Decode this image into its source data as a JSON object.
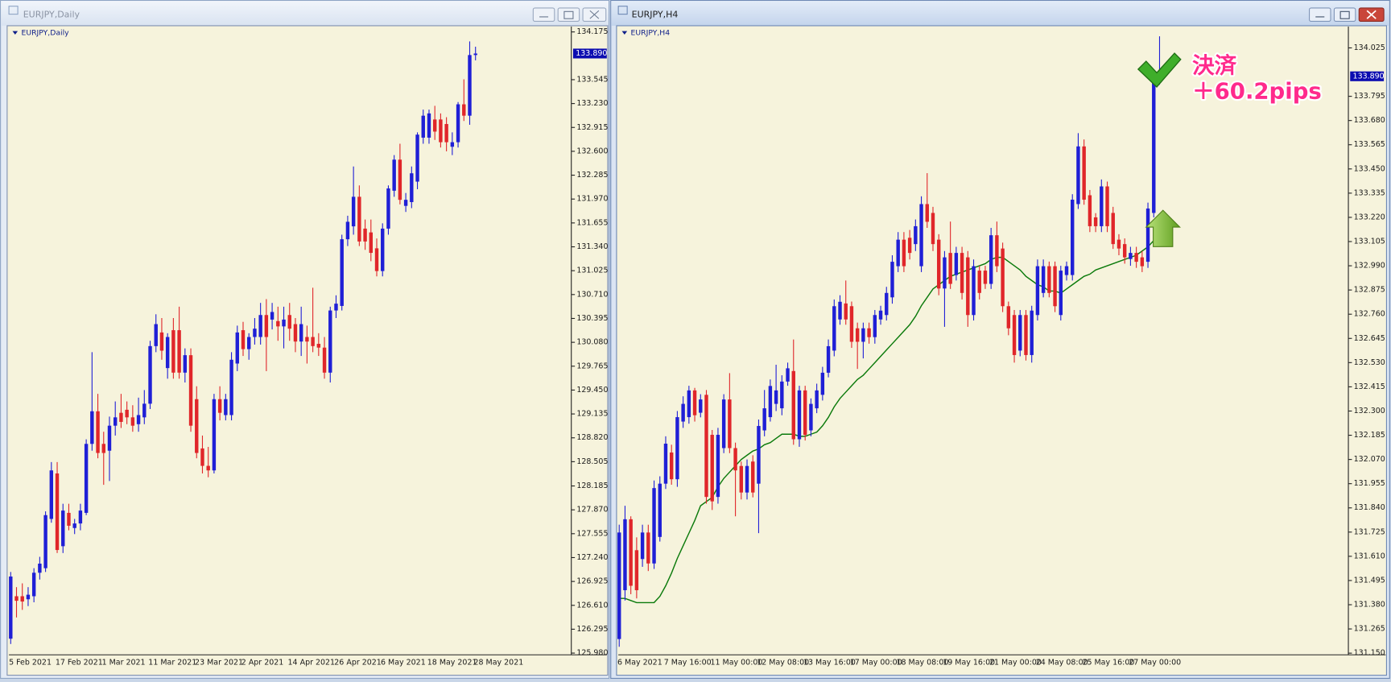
{
  "windows": [
    {
      "title": "EURJPY,Daily"
    },
    {
      "title": "EURJPY,H4"
    }
  ],
  "chart_data": [
    {
      "type": "candlestick",
      "title": "EURJPY,Daily",
      "categories": [
        "5 Feb 2021",
        null,
        null,
        null,
        null,
        null,
        null,
        null,
        "17 Feb 2021",
        null,
        null,
        null,
        null,
        null,
        null,
        null,
        "1 Mar 2021",
        null,
        null,
        null,
        null,
        null,
        null,
        null,
        "11 Mar 2021",
        null,
        null,
        null,
        null,
        null,
        null,
        null,
        "23 Mar 2021",
        null,
        null,
        null,
        null,
        null,
        null,
        null,
        "2 Apr 2021",
        null,
        null,
        null,
        null,
        null,
        null,
        null,
        "14 Apr 2021",
        null,
        null,
        null,
        null,
        null,
        null,
        null,
        "26 Apr 2021",
        null,
        null,
        null,
        null,
        null,
        null,
        null,
        "6 May 2021",
        null,
        null,
        null,
        null,
        null,
        null,
        null,
        "18 May 2021",
        null,
        null,
        null,
        null,
        null,
        null,
        null,
        "28 May 2021"
      ],
      "open": [
        126.17,
        126.73,
        126.73,
        126.69,
        126.73,
        127.04,
        127.1,
        127.75,
        128.35,
        127.39,
        127.83,
        127.63,
        127.69,
        127.83,
        128.74,
        129.17,
        128.74,
        128.65,
        128.98,
        129.15,
        129.19,
        129.09,
        129.0,
        129.09,
        129.27,
        130.03,
        130.21,
        129.74,
        130.24,
        130.24,
        129.68,
        129.91,
        129.33,
        128.68,
        128.45,
        128.39,
        129.33,
        129.12,
        129.12,
        129.8,
        130.24,
        129.99,
        130.15,
        130.15,
        130.44,
        130.38,
        130.36,
        130.29,
        130.44,
        130.32,
        130.09,
        130.15,
        130.15,
        130.06,
        130.01,
        129.68,
        130.5,
        130.56,
        131.44,
        131.61,
        132.0,
        131.58,
        131.53,
        131.32,
        131.02,
        131.58,
        132.08,
        132.49,
        131.88,
        131.93,
        132.2,
        132.78,
        132.78,
        133.02,
        133.02,
        132.96,
        132.66,
        132.72,
        133.22,
        133.07,
        133.87
      ],
      "high": [
        127.05,
        126.85,
        126.9,
        126.85,
        127.1,
        127.25,
        127.85,
        128.5,
        128.5,
        127.95,
        127.95,
        127.75,
        127.95,
        128.8,
        129.95,
        129.4,
        128.9,
        129.1,
        129.3,
        129.4,
        129.3,
        129.25,
        129.35,
        129.45,
        130.1,
        130.45,
        130.4,
        130.2,
        130.4,
        130.55,
        130.0,
        130.0,
        129.5,
        128.85,
        128.7,
        129.4,
        129.5,
        129.4,
        129.95,
        130.3,
        130.35,
        130.2,
        130.4,
        130.6,
        130.65,
        130.6,
        130.55,
        130.55,
        130.6,
        130.4,
        130.55,
        130.3,
        130.8,
        130.2,
        130.15,
        130.55,
        130.7,
        131.5,
        131.75,
        132.4,
        132.15,
        131.7,
        131.7,
        131.45,
        131.65,
        132.15,
        132.55,
        132.7,
        132.05,
        132.4,
        132.85,
        133.15,
        133.15,
        133.2,
        133.1,
        133.05,
        132.85,
        133.25,
        133.55,
        134.05,
        133.98
      ],
      "low": [
        126.1,
        126.45,
        126.55,
        126.6,
        126.65,
        126.95,
        127.05,
        127.7,
        127.3,
        127.3,
        127.6,
        127.55,
        127.6,
        127.8,
        128.65,
        128.55,
        128.2,
        128.25,
        128.85,
        128.95,
        129.0,
        128.9,
        128.9,
        129.0,
        129.2,
        129.95,
        129.85,
        129.6,
        129.6,
        129.6,
        129.55,
        128.9,
        128.55,
        128.35,
        128.3,
        128.35,
        129.05,
        129.05,
        129.05,
        129.7,
        129.9,
        129.85,
        130.05,
        130.05,
        129.7,
        130.25,
        130.1,
        130.0,
        130.1,
        129.95,
        129.9,
        129.8,
        129.95,
        129.9,
        129.6,
        129.55,
        130.4,
        130.5,
        131.35,
        131.5,
        131.35,
        131.3,
        131.15,
        130.95,
        130.95,
        131.5,
        132.0,
        131.9,
        131.8,
        131.85,
        132.1,
        132.7,
        132.7,
        132.75,
        132.65,
        132.6,
        132.55,
        132.65,
        133.0,
        132.95,
        133.8
      ],
      "close": [
        126.99,
        126.67,
        126.66,
        126.75,
        127.04,
        127.16,
        127.8,
        128.39,
        127.34,
        127.86,
        127.66,
        127.69,
        127.86,
        128.74,
        129.17,
        128.62,
        128.62,
        128.98,
        129.09,
        129.03,
        129.09,
        128.98,
        129.12,
        129.27,
        130.03,
        130.32,
        129.97,
        130.15,
        129.68,
        129.68,
        129.91,
        128.98,
        128.62,
        128.45,
        128.39,
        129.33,
        129.15,
        129.33,
        129.85,
        130.21,
        129.99,
        130.15,
        130.26,
        130.44,
        130.15,
        130.48,
        130.29,
        130.38,
        130.26,
        130.09,
        130.32,
        130.09,
        130.03,
        130.01,
        129.68,
        130.5,
        130.59,
        131.44,
        131.67,
        132.0,
        131.41,
        131.41,
        131.26,
        131.02,
        131.58,
        132.11,
        132.49,
        131.96,
        131.96,
        132.31,
        132.82,
        133.07,
        133.1,
        132.86,
        132.72,
        132.72,
        132.72,
        133.22,
        133.07,
        133.87,
        133.89
      ],
      "up_color": "#1f1fd6",
      "down_color": "#e0262a",
      "ylim": [
        125.957,
        134.245
      ],
      "yticks": [
        134.175,
        133.545,
        {
          "value": 133.23,
          "label": "133.230"
        },
        132.915,
        {
          "value": 132.6,
          "label": "132.600"
        },
        132.285,
        {
          "value": 131.97,
          "label": "131.970"
        },
        131.655,
        {
          "value": 131.34,
          "label": "131.340"
        },
        131.025,
        {
          "value": 130.71,
          "label": "130.710"
        },
        130.395,
        {
          "value": 130.08,
          "label": "130.080"
        },
        129.765,
        {
          "value": 129.45,
          "label": "129.450"
        },
        129.135,
        {
          "value": 128.82,
          "label": "128.820"
        },
        128.505,
        128.185,
        {
          "value": 127.87,
          "label": "127.870"
        },
        127.555,
        {
          "value": 127.24,
          "label": "127.240"
        },
        126.925,
        {
          "value": 126.61,
          "label": "126.610"
        },
        126.295,
        {
          "value": 125.98,
          "label": "125.980"
        }
      ],
      "last_price": {
        "value": 133.89,
        "label": "133.890"
      },
      "last_price_color": "#0c0cb0"
    },
    {
      "type": "candlestick",
      "title": "EURJPY,H4",
      "categories": [
        "6 May 2021",
        null,
        null,
        null,
        null,
        null,
        null,
        null,
        "7 May 16:00",
        null,
        null,
        null,
        null,
        null,
        null,
        null,
        "11 May 00:00",
        null,
        null,
        null,
        null,
        null,
        null,
        null,
        "12 May 08:00",
        null,
        null,
        null,
        null,
        null,
        null,
        null,
        "13 May 16:00",
        null,
        null,
        null,
        null,
        null,
        null,
        null,
        "17 May 00:00",
        null,
        null,
        null,
        null,
        null,
        null,
        null,
        "18 May 08:00",
        null,
        null,
        null,
        null,
        null,
        null,
        null,
        "19 May 16:00",
        null,
        null,
        null,
        null,
        null,
        null,
        null,
        "21 May 00:00",
        null,
        null,
        null,
        null,
        null,
        null,
        null,
        "24 May 08:00",
        null,
        null,
        null,
        null,
        null,
        null,
        null,
        "25 May 16:00",
        null,
        null,
        null,
        null,
        null,
        null,
        null,
        "27 May 00:00",
        null,
        null,
        null,
        null,
        null
      ],
      "open": [
        131.217,
        131.449,
        131.786,
        131.639,
        131.597,
        131.723,
        131.576,
        131.702,
        131.955,
        132.103,
        131.976,
        132.25,
        132.271,
        132.398,
        132.292,
        132.377,
        132.187,
        131.892,
        132.124,
        132.355,
        132.124,
        132.039,
        131.913,
        132.06,
        131.955,
        132.208,
        132.271,
        132.334,
        132.313,
        132.44,
        132.49,
        132.166,
        132.398,
        132.208,
        132.313,
        132.377,
        132.482,
        132.587,
        132.735,
        132.811,
        132.798,
        132.693,
        132.629,
        132.693,
        132.651,
        132.735,
        132.756,
        132.84,
        132.988,
        133.114,
        133.123,
        133.093,
        132.988,
        133.283,
        133.241,
        133.114,
        132.882,
        133.051,
        132.946,
        133.051,
        133.03,
        132.756,
        132.967,
        132.967,
        132.904,
        133.135,
        133.072,
        132.798,
        132.756,
        132.587,
        132.756,
        132.566,
        132.756,
        132.861,
        132.988,
        132.988,
        132.756,
        132.946,
        132.946,
        133.283,
        133.557,
        133.325,
        133.22,
        133.178,
        133.367,
        133.241,
        133.114,
        133.093,
        133.022,
        133.051,
        133.03,
        133.009,
        133.241,
        133.873
      ],
      "high": [
        131.76,
        131.85,
        131.8,
        131.7,
        131.76,
        131.76,
        131.97,
        131.99,
        132.18,
        132.14,
        132.3,
        132.37,
        132.42,
        132.41,
        132.38,
        132.4,
        132.21,
        132.22,
        132.38,
        132.48,
        132.15,
        132.06,
        132.07,
        132.09,
        132.26,
        132.4,
        132.45,
        132.52,
        132.47,
        132.53,
        132.64,
        132.42,
        132.42,
        132.36,
        132.43,
        132.51,
        132.64,
        132.83,
        132.85,
        132.92,
        132.82,
        132.72,
        132.72,
        132.72,
        132.78,
        132.8,
        132.89,
        133.04,
        133.15,
        133.15,
        133.16,
        133.21,
        133.32,
        133.43,
        133.27,
        133.14,
        133.06,
        133.2,
        133.08,
        133.08,
        133.06,
        133.02,
        132.99,
        132.99,
        133.17,
        133.2,
        133.1,
        132.82,
        132.78,
        132.78,
        132.78,
        132.8,
        133.02,
        133.02,
        133.01,
        133.01,
        132.99,
        133.01,
        133.33,
        133.62,
        133.59,
        133.35,
        133.24,
        133.4,
        133.39,
        133.27,
        133.14,
        133.12,
        133.08,
        133.08,
        133.06,
        133.29,
        133.9,
        134.08
      ],
      "low": [
        131.18,
        131.4,
        131.43,
        131.41,
        131.56,
        131.54,
        131.55,
        131.68,
        131.93,
        131.95,
        131.94,
        132.22,
        132.24,
        132.25,
        132.27,
        131.86,
        131.83,
        131.86,
        132.1,
        132.1,
        131.8,
        131.88,
        131.88,
        131.89,
        131.72,
        132.18,
        132.25,
        132.3,
        132.28,
        132.42,
        132.14,
        132.13,
        132.16,
        132.18,
        132.29,
        132.35,
        132.46,
        132.56,
        132.71,
        132.71,
        132.6,
        132.5,
        132.55,
        132.62,
        132.62,
        132.71,
        132.73,
        132.81,
        132.96,
        132.96,
        133.02,
        133.06,
        132.96,
        133.17,
        133.06,
        132.85,
        132.7,
        132.88,
        132.92,
        132.83,
        132.7,
        132.73,
        132.83,
        132.88,
        132.88,
        132.96,
        132.77,
        132.66,
        132.53,
        132.56,
        132.54,
        132.53,
        132.73,
        132.84,
        132.84,
        132.77,
        132.73,
        132.92,
        132.92,
        133.26,
        133.28,
        133.15,
        133.15,
        133.15,
        133.15,
        133.07,
        133.04,
        133.0,
        132.99,
        132.98,
        132.96,
        132.98,
        133.22,
        133.85
      ],
      "close": [
        131.723,
        131.786,
        131.47,
        131.449,
        131.723,
        131.576,
        131.934,
        131.955,
        132.145,
        131.976,
        132.271,
        132.334,
        132.398,
        132.28,
        132.355,
        131.892,
        131.871,
        132.187,
        132.355,
        132.124,
        132.018,
        131.913,
        132.039,
        131.913,
        132.229,
        132.313,
        132.419,
        132.398,
        132.44,
        132.503,
        132.166,
        132.398,
        132.187,
        132.334,
        132.398,
        132.482,
        132.608,
        132.798,
        132.819,
        132.735,
        132.629,
        132.629,
        132.693,
        132.651,
        132.756,
        132.777,
        132.861,
        133.009,
        133.114,
        132.988,
        133.051,
        133.178,
        133.283,
        133.199,
        133.093,
        132.882,
        133.03,
        132.904,
        133.051,
        132.861,
        132.756,
        132.988,
        132.861,
        132.904,
        133.135,
        132.988,
        132.798,
        132.693,
        132.566,
        132.756,
        132.566,
        132.777,
        132.988,
        132.988,
        132.861,
        132.798,
        132.967,
        132.988,
        133.304,
        133.557,
        133.304,
        133.178,
        133.178,
        133.367,
        133.178,
        133.093,
        133.072,
        133.03,
        133.051,
        133.009,
        132.988,
        133.262,
        133.873,
        133.89
      ],
      "overlay": {
        "color": "#0b7a0b",
        "values": [
          131.41,
          131.41,
          131.4,
          131.39,
          131.39,
          131.39,
          131.39,
          131.42,
          131.47,
          131.53,
          131.6,
          131.66,
          131.72,
          131.78,
          131.85,
          131.87,
          131.89,
          131.94,
          131.98,
          132.01,
          132.04,
          132.07,
          132.09,
          132.11,
          132.12,
          132.14,
          132.15,
          132.17,
          132.19,
          132.19,
          132.19,
          132.18,
          132.18,
          132.19,
          132.2,
          132.23,
          132.27,
          132.32,
          132.36,
          132.39,
          132.42,
          132.45,
          132.47,
          132.5,
          132.53,
          132.56,
          132.59,
          132.62,
          132.65,
          132.68,
          132.71,
          132.75,
          132.8,
          132.84,
          132.88,
          132.9,
          132.92,
          132.94,
          132.95,
          132.96,
          132.97,
          132.98,
          132.99,
          133.0,
          133.02,
          133.03,
          133.03,
          133.01,
          132.99,
          132.97,
          132.94,
          132.92,
          132.9,
          132.89,
          132.87,
          132.87,
          132.86,
          132.88,
          132.9,
          132.92,
          132.94,
          132.95,
          132.97,
          132.98,
          132.99,
          133.0,
          133.01,
          133.02,
          133.03,
          133.04,
          133.06,
          133.08,
          133.11,
          133.16
        ]
      },
      "up_color": "#1f1fd6",
      "down_color": "#e0262a",
      "ylim": [
        131.142,
        134.126
      ],
      "yticks": [
        134.025,
        133.795,
        {
          "value": 133.68,
          "label": "133.680"
        },
        133.565,
        {
          "value": 133.45,
          "label": "133.450"
        },
        133.335,
        {
          "value": 133.22,
          "label": "133.220"
        },
        133.105,
        {
          "value": 132.99,
          "label": "132.990"
        },
        132.875,
        {
          "value": 132.76,
          "label": "132.760"
        },
        132.645,
        {
          "value": 132.53,
          "label": "132.530"
        },
        132.415,
        {
          "value": 132.3,
          "label": "132.300"
        },
        132.185,
        {
          "value": 132.07,
          "label": "132.070"
        },
        131.955,
        {
          "value": 131.84,
          "label": "131.840"
        },
        131.725,
        {
          "value": 131.61,
          "label": "131.610"
        },
        131.495,
        {
          "value": 131.38,
          "label": "131.380"
        },
        131.265,
        {
          "value": 131.15,
          "label": "131.150"
        }
      ],
      "last_price": {
        "value": 133.89,
        "label": "133.890"
      },
      "last_price_color": "#0c0cb0",
      "annotations": [
        "決済",
        "＋60.2pips"
      ]
    }
  ]
}
